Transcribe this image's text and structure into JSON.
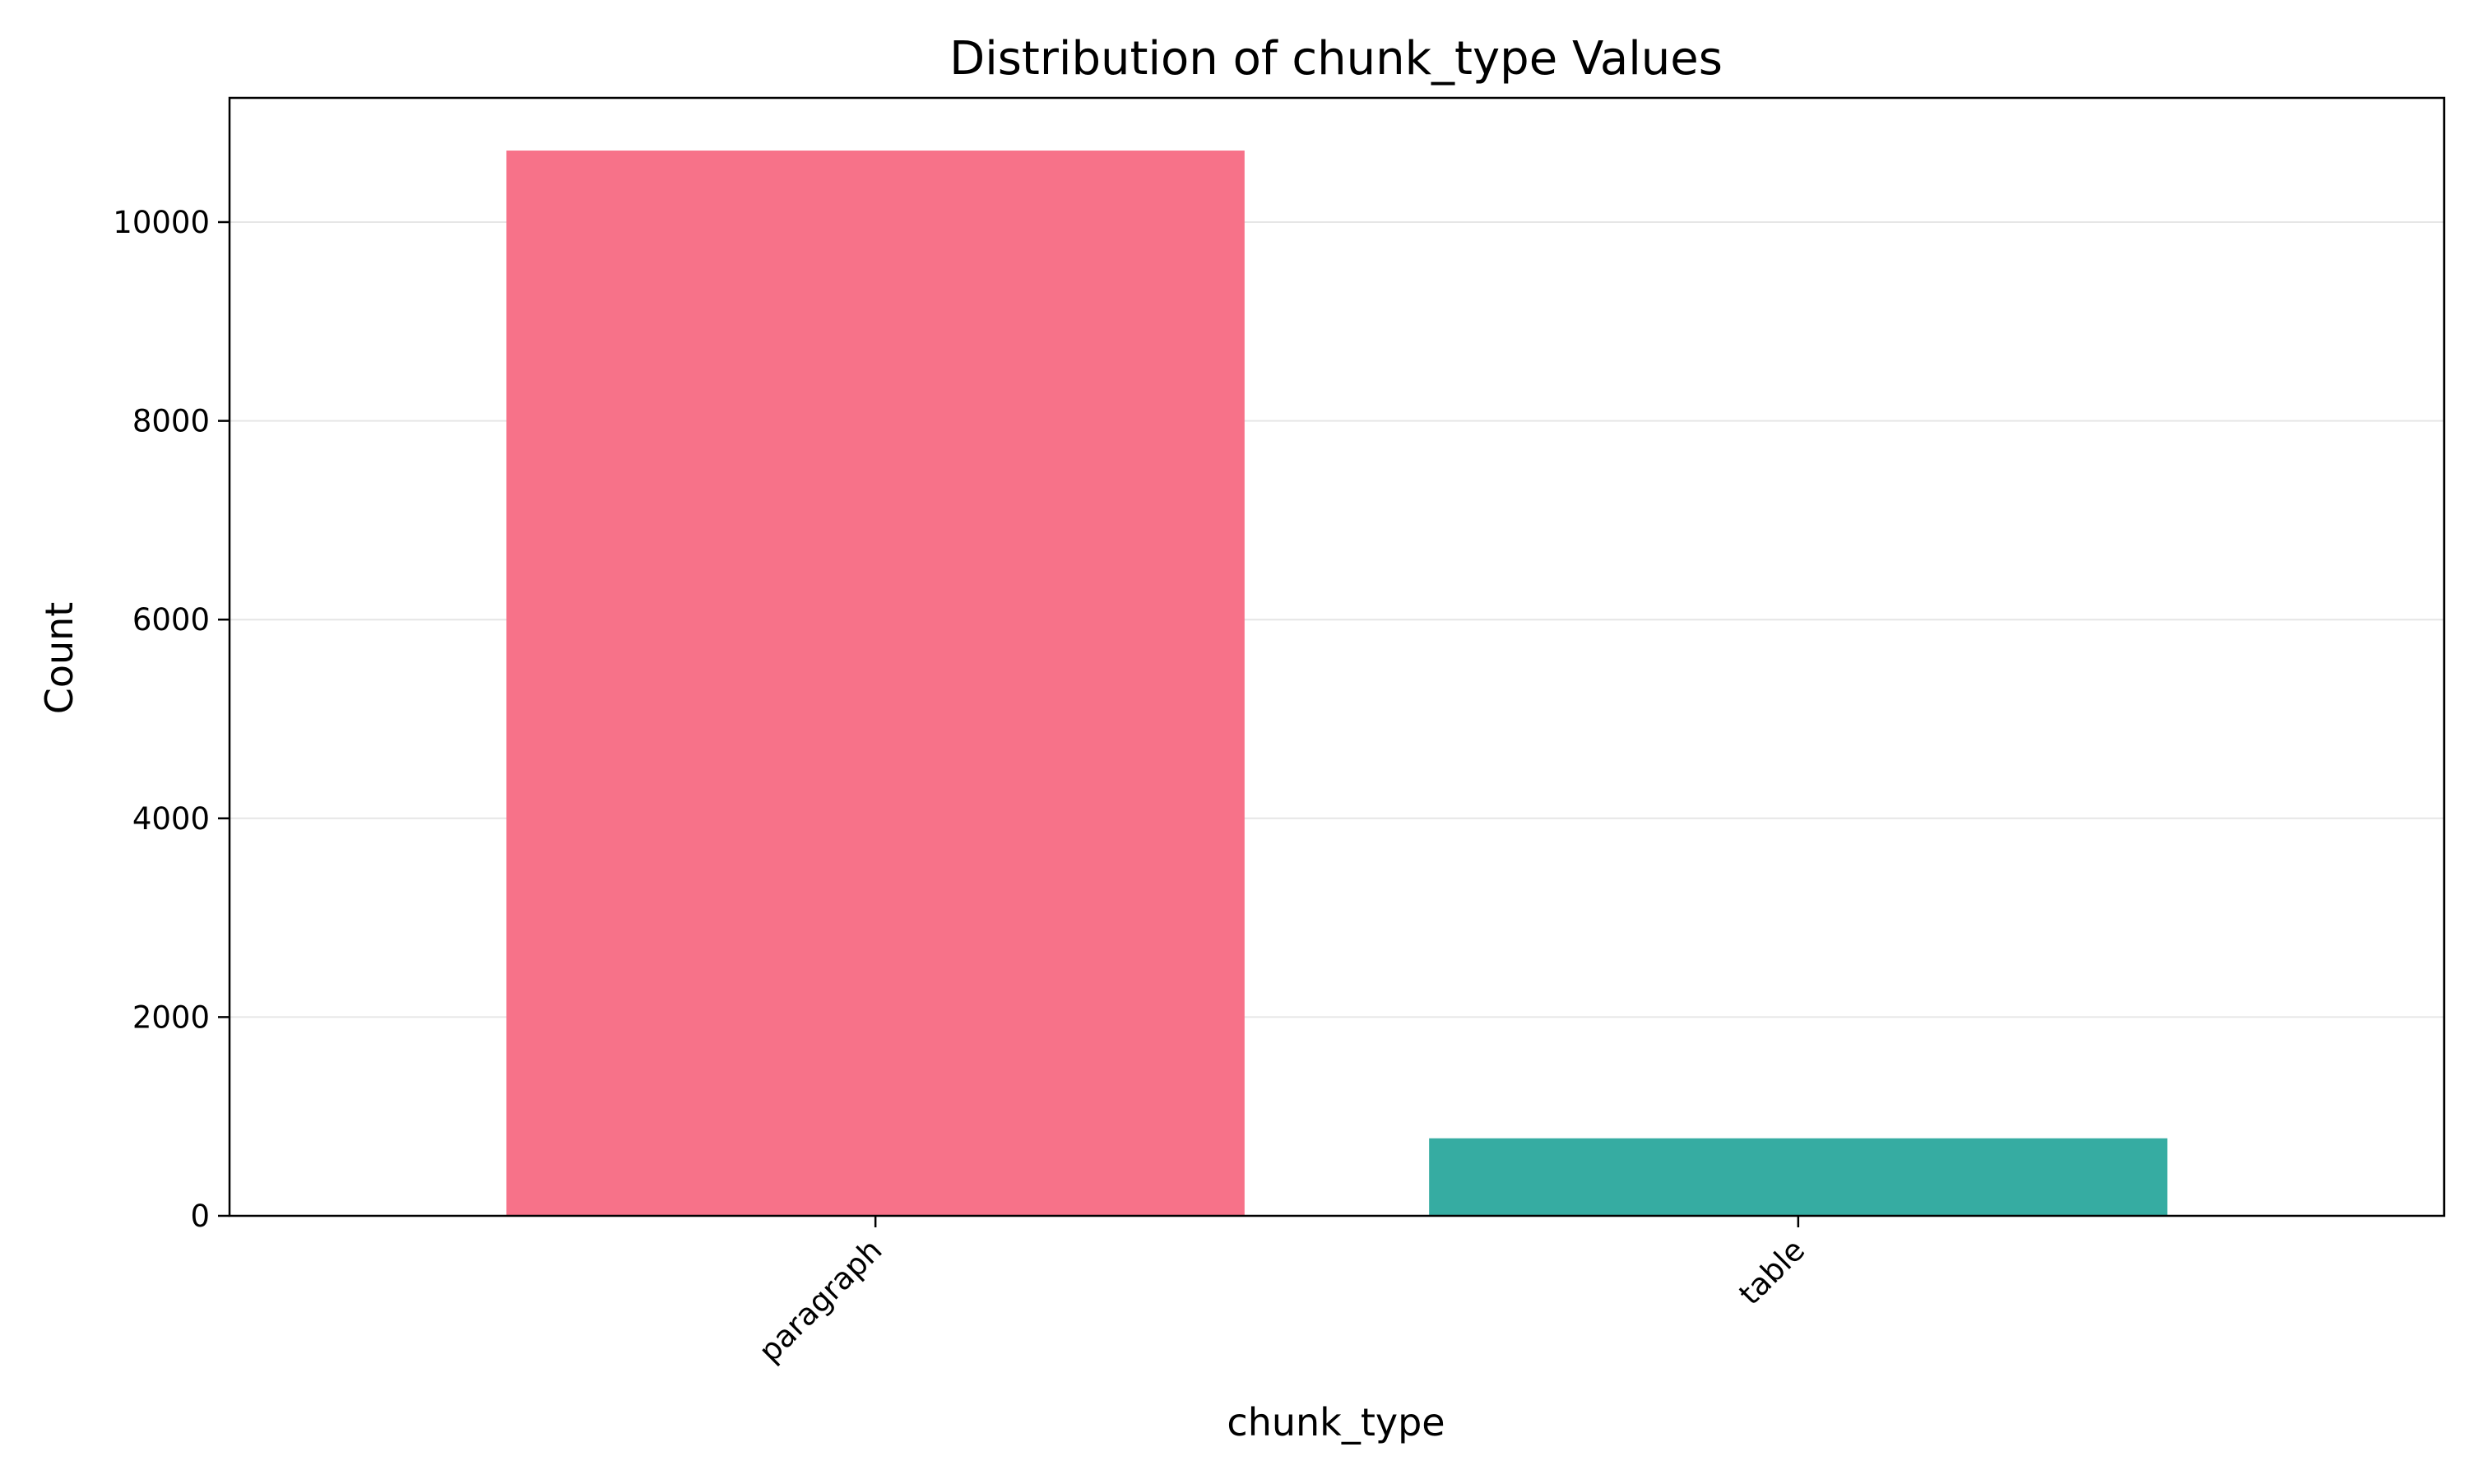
{
  "chart_data": {
    "type": "bar",
    "title": "Distribution of chunk_type Values",
    "xlabel": "chunk_type",
    "ylabel": "Count",
    "categories": [
      "paragraph",
      "table"
    ],
    "values": [
      10720,
      780
    ],
    "colors": [
      "#f77289",
      "#36aca2"
    ],
    "ylim": [
      0,
      11250
    ],
    "yticks": [
      0,
      2000,
      4000,
      6000,
      8000,
      10000
    ],
    "ytick_labels": [
      "0",
      "2000",
      "4000",
      "6000",
      "8000",
      "10000"
    ],
    "grid": "y",
    "grid_color": "#e6e6e6",
    "xtick_rotation": 45,
    "legend": "none"
  }
}
